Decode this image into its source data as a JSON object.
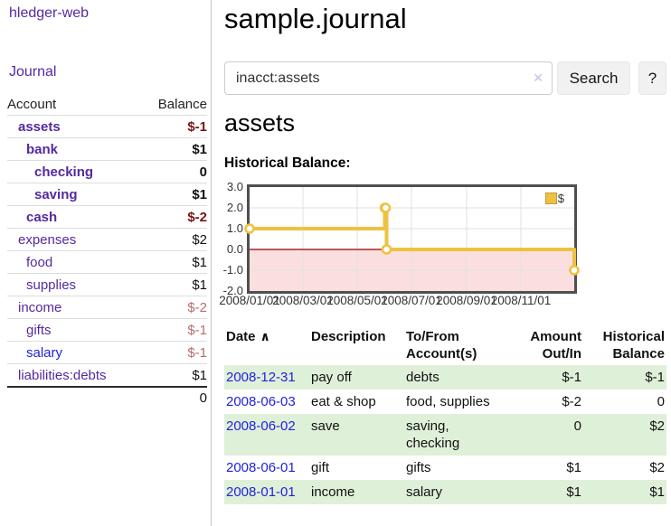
{
  "brand": "hledger-web",
  "nav": {
    "journal": "Journal"
  },
  "page": {
    "title": "sample.journal",
    "account_heading": "assets",
    "chart_heading": "Historical Balance:"
  },
  "search": {
    "value": "inacct:assets",
    "clear_icon": "✕",
    "search_button": "Search",
    "help_button": "?"
  },
  "sidebar_accounts": {
    "col_account": "Account",
    "col_balance": "Balance",
    "rows": [
      {
        "account": "assets",
        "balance": "$-1",
        "indent": 0,
        "bold": true,
        "balance_style": "neg-strong"
      },
      {
        "account": "bank",
        "balance": "$1",
        "indent": 1,
        "bold": true,
        "balance_style": "plain"
      },
      {
        "account": "checking",
        "balance": "0",
        "indent": 2,
        "bold": true,
        "balance_style": "plain"
      },
      {
        "account": "saving",
        "balance": "$1",
        "indent": 2,
        "bold": true,
        "balance_style": "plain"
      },
      {
        "account": "cash",
        "balance": "$-2",
        "indent": 1,
        "bold": true,
        "balance_style": "neg-strong"
      },
      {
        "account": "expenses",
        "balance": "$2",
        "indent": 0,
        "bold": false,
        "balance_style": "plain"
      },
      {
        "account": "food",
        "balance": "$1",
        "indent": 1,
        "bold": false,
        "balance_style": "plain"
      },
      {
        "account": "supplies",
        "balance": "$1",
        "indent": 1,
        "bold": false,
        "balance_style": "plain"
      },
      {
        "account": "income",
        "balance": "$-2",
        "indent": 0,
        "bold": false,
        "balance_style": "neg-soft"
      },
      {
        "account": "gifts",
        "balance": "$-1",
        "indent": 1,
        "bold": false,
        "balance_style": "neg-soft"
      },
      {
        "account": "salary",
        "balance": "$-1",
        "indent": 1,
        "bold": false,
        "balance_style": "neg-soft",
        "link_style": "fresh"
      },
      {
        "account": "liabilities:debts",
        "balance": "$1",
        "indent": 0,
        "bold": false,
        "balance_style": "plain"
      }
    ],
    "total": "0"
  },
  "register": {
    "sort_icon": "∧",
    "columns": [
      "Date",
      "Description",
      "To/From Account(s)",
      "Amount Out/In",
      "Historical Balance"
    ],
    "rows": [
      {
        "date": "2008-12-31",
        "description": "pay off",
        "accounts": "debts",
        "amount": "$-1",
        "balance": "$-1"
      },
      {
        "date": "2008-06-03",
        "description": "eat & shop",
        "accounts": "food, supplies",
        "amount": "$-2",
        "balance": "0"
      },
      {
        "date": "2008-06-02",
        "description": "save",
        "accounts": "saving, checking",
        "amount": "0",
        "balance": "$2"
      },
      {
        "date": "2008-06-01",
        "description": "gift",
        "accounts": "gifts",
        "amount": "$1",
        "balance": "$2"
      },
      {
        "date": "2008-01-01",
        "description": "income",
        "accounts": "salary",
        "amount": "$1",
        "balance": "$1"
      }
    ]
  },
  "chart_data": {
    "type": "line",
    "step": true,
    "title": "Historical Balance:",
    "x_range": [
      "2008-01-01",
      "2008-12-31"
    ],
    "ylim": [
      -2,
      3
    ],
    "y_ticks": [
      "3.0",
      "2.0",
      "1.0",
      "0.0",
      "-1.0",
      "-2.0"
    ],
    "x_ticks": [
      {
        "label": "2008/01/01",
        "date": "2008-01-01"
      },
      {
        "label": "2008/03/01",
        "date": "2008-03-01"
      },
      {
        "label": "2008/05/01",
        "date": "2008-05-01"
      },
      {
        "label": "2008/07/01",
        "date": "2008-07-01"
      },
      {
        "label": "2008/09/01",
        "date": "2008-09-01"
      },
      {
        "label": "2008/11/01",
        "date": "2008-11-01"
      }
    ],
    "series": [
      {
        "name": "$",
        "color": "#edc240",
        "points": [
          [
            "2008-01-01",
            1
          ],
          [
            "2008-06-01",
            2
          ],
          [
            "2008-06-02",
            2
          ],
          [
            "2008-06-03",
            0
          ],
          [
            "2008-12-31",
            -1
          ]
        ]
      }
    ],
    "legend": {
      "label": "$",
      "position": "top-right"
    },
    "colors": {
      "negative_fill": "#fbdfdf",
      "zero_line": "#8b0000",
      "grid": "#e2e2e2",
      "border": "#4f4f4f"
    }
  },
  "colors": {
    "link_purple": "#5529a0",
    "link_blue": "#2222dd",
    "negative_strong": "#7c1313",
    "negative_soft": "#b76d6d",
    "register_negative": "#8b2121",
    "stripe_green": "#dff0d8",
    "chart_line": "#edc240"
  }
}
